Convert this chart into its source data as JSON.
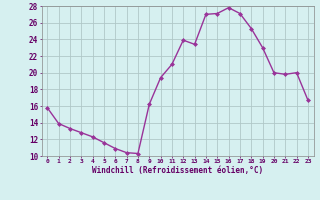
{
  "x": [
    0,
    1,
    2,
    3,
    4,
    5,
    6,
    7,
    8,
    9,
    10,
    11,
    12,
    13,
    14,
    15,
    16,
    17,
    18,
    19,
    20,
    21,
    22,
    23
  ],
  "y": [
    15.8,
    13.9,
    13.3,
    12.8,
    12.3,
    11.6,
    10.9,
    10.4,
    10.3,
    16.2,
    19.4,
    21.0,
    23.9,
    23.4,
    27.0,
    27.1,
    27.8,
    27.1,
    25.3,
    23.0,
    20.0,
    19.8,
    20.0,
    16.7
  ],
  "line_color": "#993399",
  "marker": "D",
  "marker_size": 2,
  "bg_color": "#d6f0f0",
  "grid_color": "#b0c8c8",
  "xlabel": "Windchill (Refroidissement éolien,°C)",
  "xlabel_color": "#660066",
  "tick_color": "#660066",
  "ylim": [
    10,
    28
  ],
  "yticks": [
    10,
    12,
    14,
    16,
    18,
    20,
    22,
    24,
    26,
    28
  ],
  "xticks": [
    0,
    1,
    2,
    3,
    4,
    5,
    6,
    7,
    8,
    9,
    10,
    11,
    12,
    13,
    14,
    15,
    16,
    17,
    18,
    19,
    20,
    21,
    22,
    23
  ]
}
